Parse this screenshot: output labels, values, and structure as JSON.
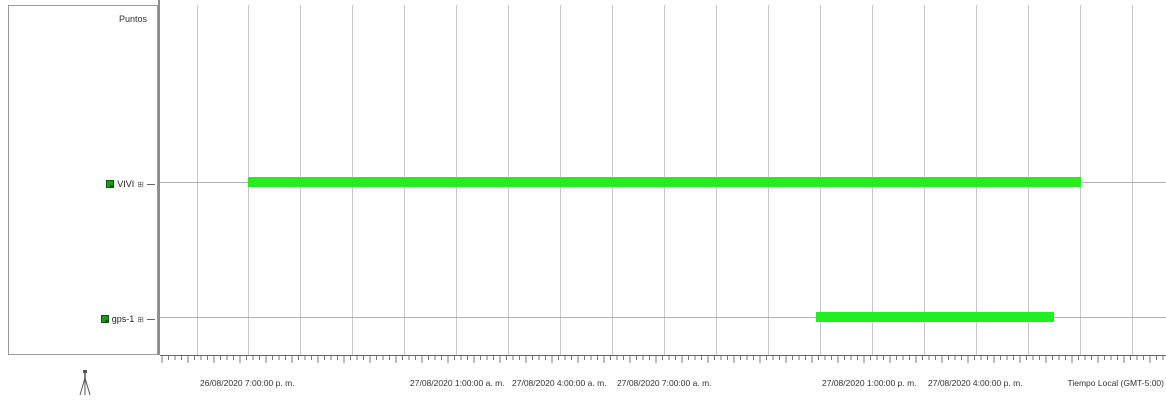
{
  "panel": {
    "title": "Puntos",
    "points": [
      {
        "label": "VIVI",
        "expand": "⊞"
      },
      {
        "label": "gps-1",
        "expand": "⊞"
      }
    ]
  },
  "timeline": {
    "bars": [
      {
        "point": "VIVI",
        "start": "26/08/2020 7:00:00 p. m.",
        "end": "27/08/2020 7:00:00 p. m.",
        "color": "#22ee22"
      },
      {
        "point": "gps-1",
        "start": "27/08/2020 10:00:00 a. m.",
        "end": "27/08/2020 6:20:00 p. m.",
        "color": "#22ee22"
      }
    ],
    "tick_labels": [
      "26/08/2020 7:00:00 p. m.",
      "27/08/2020 1:00:00 a. m.",
      "27/08/2020 4:00:00 a. m.",
      "27/08/2020 7:00:00 a. m.",
      "27/08/2020 1:00:00 p. m.",
      "27/08/2020 4:00:00 p. m."
    ],
    "timezone_label": "Tiempo Local (GMT-5:00)"
  }
}
